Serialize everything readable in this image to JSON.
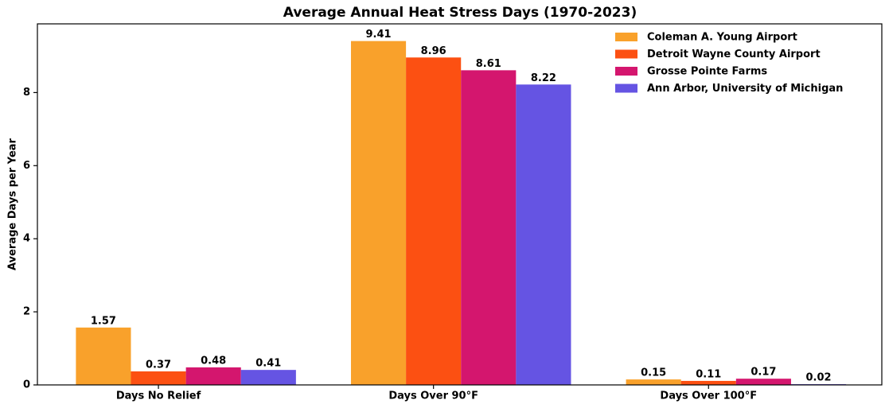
{
  "chart_data": {
    "type": "bar",
    "title": "Average Annual Heat Stress Days (1970-2023)",
    "y_label": "Average Days per Year",
    "categories": [
      "Days No Relief",
      "Days Over 90°F",
      "Days Over 100°F"
    ],
    "series": [
      {
        "name": "Coleman A. Young Airport",
        "color": "#f9a12b",
        "values": [
          1.57,
          9.41,
          0.15
        ]
      },
      {
        "name": "Detroit Wayne County Airport",
        "color": "#fc5012",
        "values": [
          0.37,
          8.96,
          0.11
        ]
      },
      {
        "name": "Grosse Pointe Farms",
        "color": "#d4166e",
        "values": [
          0.48,
          8.61,
          0.17
        ]
      },
      {
        "name": "Ann Arbor, University of Michigan",
        "color": "#6554e3",
        "values": [
          0.41,
          8.22,
          0.02
        ]
      }
    ],
    "ylim": [
      0,
      9.88
    ],
    "yticks": [
      0,
      2,
      4,
      6,
      8
    ],
    "legend": "upper right",
    "grid": false
  }
}
